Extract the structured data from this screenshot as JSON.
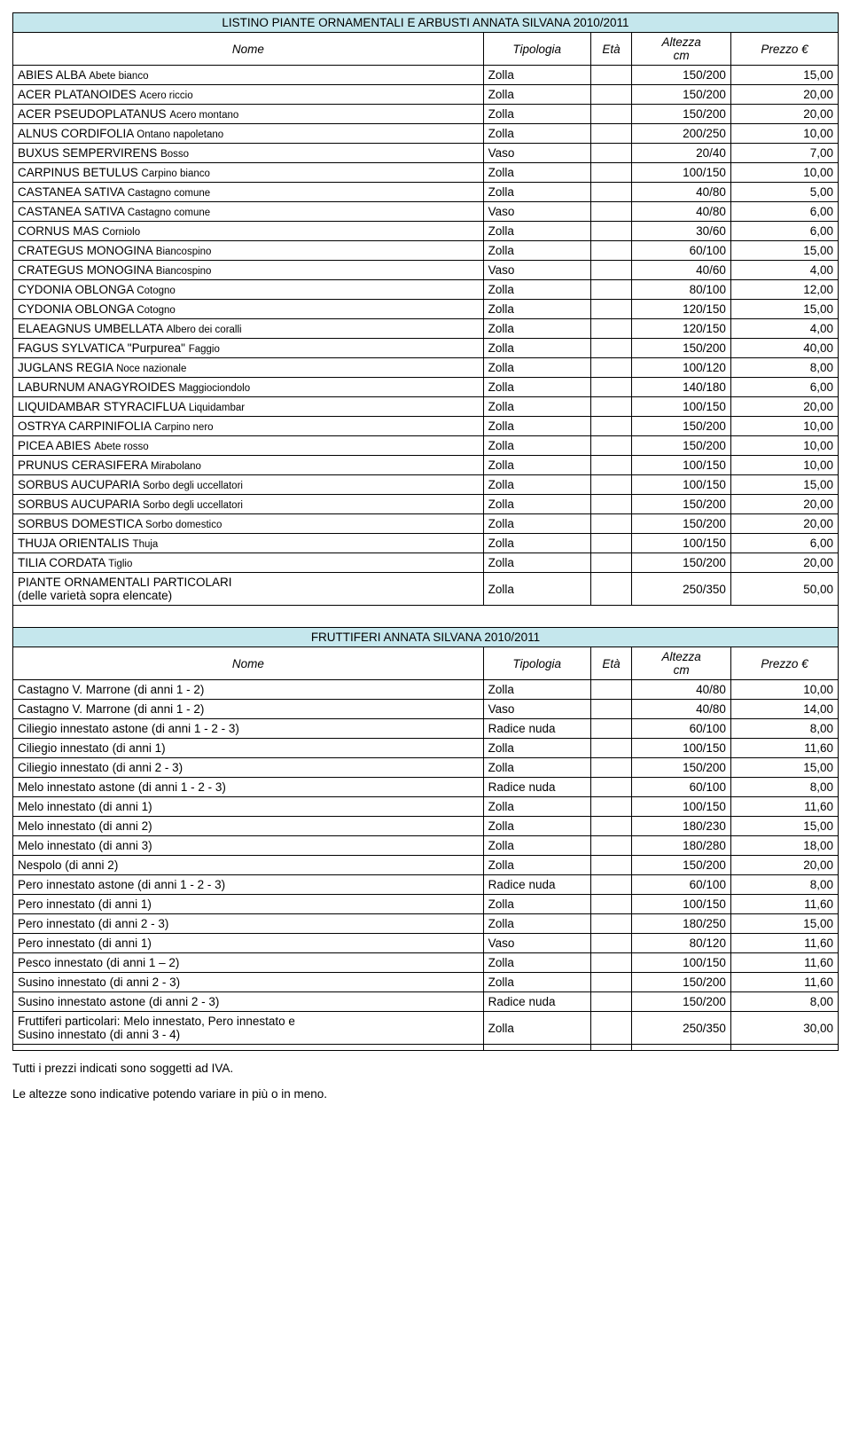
{
  "titles": {
    "ornamentali": "LISTINO PIANTE ORNAMENTALI E ARBUSTI ANNATA SILVANA 2010/2011",
    "fruttiferi": "FRUTTIFERI ANNATA SILVANA 2010/2011"
  },
  "headers": {
    "nome": "Nome",
    "tipologia": "Tipologia",
    "eta": "Età",
    "altezza_line1": "Altezza",
    "altezza_line2": "cm",
    "prezzo": "Prezzo €"
  },
  "ornamentali_rows": [
    {
      "nome_m": "ABIES ALBA",
      "nome_s": "Abete bianco",
      "tip": "Zolla",
      "alt": "150/200",
      "prz": "15,00"
    },
    {
      "nome_m": "ACER PLATANOIDES",
      "nome_s": "Acero riccio",
      "tip": "Zolla",
      "alt": "150/200",
      "prz": "20,00"
    },
    {
      "nome_m": "ACER PSEUDOPLATANUS",
      "nome_s": "Acero montano",
      "tip": "Zolla",
      "alt": "150/200",
      "prz": "20,00"
    },
    {
      "nome_m": "ALNUS CORDIFOLIA",
      "nome_s": "Ontano napoletano",
      "tip": "Zolla",
      "alt": "200/250",
      "prz": "10,00"
    },
    {
      "nome_m": "BUXUS SEMPERVIRENS",
      "nome_s": "Bosso",
      "tip": "Vaso",
      "alt": "20/40",
      "prz": "7,00"
    },
    {
      "nome_m": "CARPINUS BETULUS",
      "nome_s": "Carpino bianco",
      "tip": "Zolla",
      "alt": "100/150",
      "prz": "10,00"
    },
    {
      "nome_m": "CASTANEA SATIVA",
      "nome_s": "Castagno comune",
      "tip": "Zolla",
      "alt": "40/80",
      "prz": "5,00"
    },
    {
      "nome_m": "CASTANEA SATIVA",
      "nome_s": "Castagno comune",
      "tip": "Vaso",
      "alt": "40/80",
      "prz": "6,00"
    },
    {
      "nome_m": "CORNUS MAS",
      "nome_s": "Corniolo",
      "tip": "Zolla",
      "alt": "30/60",
      "prz": "6,00"
    },
    {
      "nome_m": "CRATEGUS  MONOGINA",
      "nome_s": "Biancospino",
      "tip": "Zolla",
      "alt": "60/100",
      "prz": "15,00"
    },
    {
      "nome_m": "CRATEGUS  MONOGINA",
      "nome_s": "Biancospino",
      "tip": "Vaso",
      "alt": "40/60",
      "prz": "4,00"
    },
    {
      "nome_m": "CYDONIA OBLONGA",
      "nome_s": "Cotogno",
      "tip": "Zolla",
      "alt": "80/100",
      "prz": "12,00"
    },
    {
      "nome_m": "CYDONIA OBLONGA",
      "nome_s": "Cotogno",
      "tip": "Zolla",
      "alt": "120/150",
      "prz": "15,00"
    },
    {
      "nome_m": "ELAEAGNUS UMBELLATA",
      "nome_s": "Albero dei coralli",
      "tip": "Zolla",
      "alt": "120/150",
      "prz": "4,00"
    },
    {
      "nome_m": "FAGUS SYLVATICA \"Purpurea\"",
      "nome_s": "Faggio",
      "tip": "Zolla",
      "alt": "150/200",
      "prz": "40,00"
    },
    {
      "nome_m": "JUGLANS REGIA",
      "nome_s": "Noce nazionale",
      "tip": "Zolla",
      "alt": "100/120",
      "prz": "8,00"
    },
    {
      "nome_m": "LABURNUM ANAGYROIDES",
      "nome_s": "Maggiociondolo",
      "tip": "Zolla",
      "alt": "140/180",
      "prz": "6,00"
    },
    {
      "nome_m": "LIQUIDAMBAR STYRACIFLUA",
      "nome_s": "Liquidambar",
      "tip": "Zolla",
      "alt": "100/150",
      "prz": "20,00"
    },
    {
      "nome_m": "OSTRYA CARPINIFOLIA",
      "nome_s": "Carpino nero",
      "tip": "Zolla",
      "alt": "150/200",
      "prz": "10,00"
    },
    {
      "nome_m": "PICEA ABIES",
      "nome_s": "Abete rosso",
      "tip": "Zolla",
      "alt": "150/200",
      "prz": "10,00"
    },
    {
      "nome_m": "PRUNUS CERASIFERA",
      "nome_s": "Mirabolano",
      "tip": "Zolla",
      "alt": "100/150",
      "prz": "10,00"
    },
    {
      "nome_m": "SORBUS AUCUPARIA",
      "nome_s": "Sorbo degli uccellatori",
      "tip": "Zolla",
      "alt": "100/150",
      "prz": "15,00"
    },
    {
      "nome_m": "SORBUS AUCUPARIA",
      "nome_s": "Sorbo degli uccellatori",
      "tip": "Zolla",
      "alt": "150/200",
      "prz": "20,00"
    },
    {
      "nome_m": "SORBUS DOMESTICA",
      "nome_s": "Sorbo domestico",
      "tip": "Zolla",
      "alt": "150/200",
      "prz": "20,00"
    },
    {
      "nome_m": "THUJA ORIENTALIS",
      "nome_s": "Thuja",
      "tip": "Zolla",
      "alt": "100/150",
      "prz": "6,00"
    },
    {
      "nome_m": "TILIA CORDATA",
      "nome_s": "Tiglio",
      "tip": "Zolla",
      "alt": "150/200",
      "prz": "20,00"
    }
  ],
  "orn_special": {
    "line1": "PIANTE ORNAMENTALI  PARTICOLARI",
    "line2": "(delle varietà sopra elencate)",
    "tip": "Zolla",
    "alt": "250/350",
    "prz": "50,00"
  },
  "fruttiferi_rows": [
    {
      "nome": "Castagno V. Marrone (di anni 1 - 2)",
      "tip": "Zolla",
      "alt": "40/80",
      "prz": "10,00"
    },
    {
      "nome": "Castagno V. Marrone (di anni 1 - 2)",
      "tip": "Vaso",
      "alt": "40/80",
      "prz": "14,00"
    },
    {
      "nome": "Ciliegio innestato astone (di anni 1 - 2 - 3)",
      "tip": "Radice nuda",
      "alt": "60/100",
      "prz": "8,00"
    },
    {
      "nome": "Ciliegio innestato (di anni 1)",
      "tip": "Zolla",
      "alt": "100/150",
      "prz": "11,60"
    },
    {
      "nome": "Ciliegio innestato (di anni 2 - 3)",
      "tip": "Zolla",
      "alt": "150/200",
      "prz": "15,00"
    },
    {
      "nome": "Melo innestato astone (di anni 1 - 2 - 3)",
      "tip": "Radice nuda",
      "alt": "60/100",
      "prz": "8,00"
    },
    {
      "nome": "Melo innestato (di anni 1)",
      "tip": "Zolla",
      "alt": "100/150",
      "prz": "11,60"
    },
    {
      "nome": "Melo innestato (di anni 2)",
      "tip": "Zolla",
      "alt": "180/230",
      "prz": "15,00"
    },
    {
      "nome": "Melo innestato (di anni 3)",
      "tip": "Zolla",
      "alt": "180/280",
      "prz": "18,00"
    },
    {
      "nome": "Nespolo (di anni 2)",
      "tip": "Zolla",
      "alt": "150/200",
      "prz": "20,00"
    },
    {
      "nome": "Pero innestato astone (di anni 1 - 2 - 3)",
      "tip": "Radice nuda",
      "alt": "60/100",
      "prz": "8,00"
    },
    {
      "nome": "Pero innestato (di anni 1)",
      "tip": "Zolla",
      "alt": "100/150",
      "prz": "11,60"
    },
    {
      "nome": "Pero innestato (di anni 2 - 3)",
      "tip": "Zolla",
      "alt": "180/250",
      "prz": "15,00"
    },
    {
      "nome": "Pero innestato (di anni 1)",
      "tip": "Vaso",
      "alt": "80/120",
      "prz": "11,60"
    },
    {
      "nome": "Pesco innestato (di anni 1 – 2)",
      "tip": "Zolla",
      "alt": "100/150",
      "prz": "11,60"
    },
    {
      "nome": "Susino innestato (di anni 2 - 3)",
      "tip": "Zolla",
      "alt": "150/200",
      "prz": "11,60"
    },
    {
      "nome": "Susino innestato astone (di anni 2 - 3)",
      "tip": "Radice nuda",
      "alt": "150/200",
      "prz": "8,00"
    }
  ],
  "fru_special": {
    "line1": "Fruttiferi particolari: Melo innestato, Pero innestato e",
    "line2": "Susino innestato (di anni 3 - 4)",
    "tip": "Zolla",
    "alt": "250/350",
    "prz": "30,00"
  },
  "footer": {
    "note1": "Tutti i prezzi indicati sono soggetti ad IVA.",
    "note2": "Le altezze sono indicative potendo variare in più o in meno."
  }
}
